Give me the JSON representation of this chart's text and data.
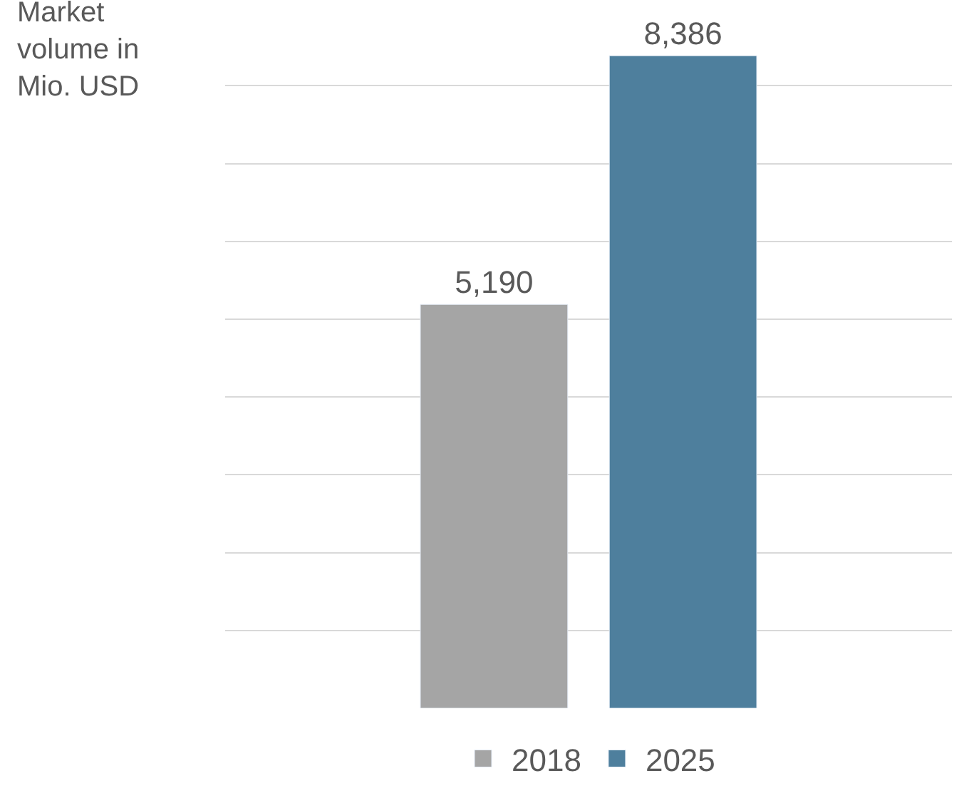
{
  "chart_data": {
    "type": "bar",
    "ylabel": "Market volume in Mio. USD",
    "categories": [
      null
    ],
    "series": [
      {
        "name": "2018",
        "color": "#a5a5a5",
        "values": [
          5190
        ],
        "value_labels": [
          "5,190"
        ]
      },
      {
        "name": "2025",
        "color": "#4e7f9d",
        "values": [
          8386
        ],
        "value_labels": [
          "8,386"
        ]
      }
    ],
    "grid": "y",
    "legend": "bottom",
    "tick_labels": false
  }
}
